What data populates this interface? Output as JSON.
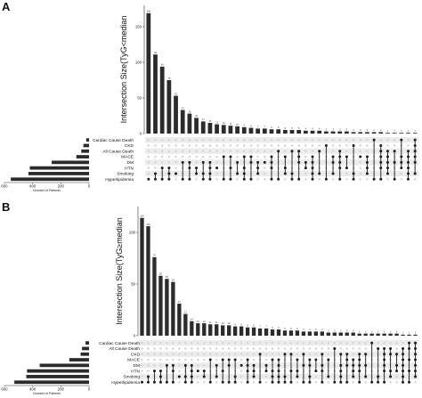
{
  "chart_data": [
    {
      "panel": "A",
      "type": "upset",
      "ylabel": "Intersection Size(TyG<median",
      "y_ticks": [
        0,
        50,
        100,
        150
      ],
      "ylim": [
        0,
        180
      ],
      "intersections_sizes": [
        169,
        111,
        94,
        75,
        53,
        33,
        28,
        22,
        17,
        15,
        13,
        12,
        11,
        10,
        9,
        8,
        7,
        7,
        6,
        6,
        5,
        5,
        5,
        4,
        4,
        4,
        3,
        3,
        3,
        3,
        2,
        2,
        2,
        2,
        2,
        1,
        1,
        1,
        1,
        1
      ],
      "intersections_labels": [
        "169",
        "111",
        "94",
        "75",
        "53",
        "33",
        "28",
        "22",
        "17",
        "15",
        "13",
        "12",
        "11",
        "10",
        "9",
        "8",
        "7",
        "7",
        "6",
        "6",
        "5",
        "5",
        "5",
        "4",
        "4",
        "4",
        "3",
        "3",
        "3",
        "3",
        "2",
        "2",
        "2",
        "2",
        "2",
        "1",
        "1",
        "1",
        "1",
        "1"
      ],
      "sets": [
        "Cardiac Cause Death",
        "CKD",
        "All Cause Death",
        "MACE",
        "DM",
        "HTN",
        "Smoking",
        "Hyperlipidemia"
      ],
      "set_sizes": [
        20,
        40,
        55,
        90,
        265,
        420,
        430,
        555
      ],
      "set_axis_ticks": [
        600,
        400,
        200,
        0
      ],
      "set_axis_labels": [
        "600",
        "400",
        "200",
        "0"
      ],
      "set_axis_label": "Number of Patients",
      "matrix": [
        [
          7
        ],
        [
          7,
          6
        ],
        [
          7,
          5
        ],
        [
          7,
          6,
          5
        ],
        [
          6
        ],
        [
          7,
          4
        ],
        [
          7,
          5,
          4
        ],
        [
          6,
          5
        ],
        [
          7,
          6,
          4
        ],
        [
          7,
          6,
          5,
          4
        ],
        [
          5
        ],
        [
          7,
          3
        ],
        [
          7,
          5,
          3
        ],
        [
          6,
          4
        ],
        [
          7,
          6,
          5,
          3
        ],
        [
          7,
          4,
          3
        ],
        [
          6,
          5,
          4
        ],
        [
          4
        ],
        [
          7,
          5,
          4,
          3
        ],
        [
          7,
          2
        ],
        [
          6,
          5,
          3
        ],
        [
          7,
          6,
          2
        ],
        [
          7,
          4,
          3,
          2
        ],
        [
          5,
          4
        ],
        [
          7,
          6,
          5,
          4,
          3
        ],
        [
          6,
          2
        ],
        [
          7,
          1
        ],
        [
          6,
          4,
          3
        ],
        [
          7,
          5,
          4,
          3,
          2
        ],
        [
          5,
          3
        ],
        [
          7,
          6,
          1
        ],
        [
          3
        ],
        [
          6,
          5,
          4,
          3
        ],
        [
          7,
          0
        ],
        [
          7,
          5,
          4,
          3,
          2,
          1
        ],
        [
          6,
          5,
          4,
          3,
          2
        ],
        [
          7,
          4,
          2
        ],
        [
          5,
          4,
          3,
          0
        ],
        [
          7,
          6,
          5,
          4,
          3,
          2
        ],
        [
          6,
          4,
          3,
          2,
          1,
          0
        ]
      ]
    },
    {
      "panel": "B",
      "type": "upset",
      "ylabel": "Intersection Size(TyG≥median",
      "y_ticks": [
        0,
        50,
        100
      ],
      "ylim": [
        0,
        125
      ],
      "intersections_sizes": [
        114,
        106,
        76,
        58,
        55,
        52,
        31,
        21,
        14,
        12,
        12,
        11,
        11,
        10,
        10,
        9,
        9,
        8,
        8,
        7,
        7,
        6,
        6,
        5,
        5,
        5,
        4,
        4,
        4,
        4,
        3,
        3,
        3,
        3,
        3,
        2,
        2,
        2,
        2,
        2,
        2,
        2,
        1,
        1,
        1
      ],
      "intersections_labels": [
        "114",
        "106",
        "76",
        "58",
        "55",
        "52",
        "31",
        "21",
        "14",
        "12",
        "12",
        "11",
        "11",
        "10",
        "10",
        "9",
        "9",
        "8",
        "8",
        "7",
        "7",
        "6",
        "6",
        "5",
        "5",
        "5",
        "4",
        "4",
        "4",
        "4",
        "3",
        "3",
        "3",
        "3",
        "3",
        "2",
        "2",
        "2",
        "2",
        "2",
        "2",
        "2",
        "1",
        "1",
        "1"
      ],
      "sets": [
        "Cardiac Cause Death",
        "All Cause Death",
        "CKD",
        "MACE",
        "DM",
        "HTN",
        "Smoking",
        "Hyperlipidemia"
      ],
      "set_sizes": [
        25,
        50,
        60,
        140,
        350,
        440,
        445,
        530
      ],
      "set_axis_ticks": [
        600,
        400,
        200,
        0
      ],
      "set_axis_labels": [
        "600",
        "400",
        "200",
        "0"
      ],
      "set_axis_label": "Number of Patients",
      "matrix": [
        [
          7
        ],
        [
          7,
          6
        ],
        [
          7,
          5
        ],
        [
          7,
          6,
          5
        ],
        [
          7,
          4
        ],
        [
          7,
          5,
          4
        ],
        [
          6
        ],
        [
          7,
          6,
          4
        ],
        [
          7,
          6,
          5,
          4
        ],
        [
          5
        ],
        [
          6,
          5
        ],
        [
          7,
          3
        ],
        [
          6,
          4
        ],
        [
          7,
          5,
          3
        ],
        [
          7,
          4,
          3
        ],
        [
          7,
          6,
          3
        ],
        [
          4
        ],
        [
          7,
          5,
          4,
          3
        ],
        [
          6,
          5,
          4
        ],
        [
          7,
          2
        ],
        [
          5,
          4
        ],
        [
          7,
          6,
          5,
          3
        ],
        [
          7,
          6,
          5,
          4,
          3
        ],
        [
          7,
          6,
          2
        ],
        [
          7,
          5,
          2
        ],
        [
          6,
          5,
          3
        ],
        [
          7,
          4,
          2
        ],
        [
          7,
          6,
          4,
          3
        ],
        [
          5,
          3
        ],
        [
          7,
          5,
          4,
          2
        ],
        [
          6,
          3
        ],
        [
          7,
          1
        ],
        [
          7,
          6,
          5,
          4,
          2
        ],
        [
          7,
          4,
          3,
          2
        ],
        [
          6,
          5,
          4,
          3
        ],
        [
          7,
          5,
          4,
          3,
          2
        ],
        [
          6,
          4,
          2
        ],
        [
          7,
          0
        ],
        [
          7,
          6,
          1
        ],
        [
          7,
          5,
          4,
          3,
          2,
          1
        ],
        [
          6,
          5,
          2,
          1
        ],
        [
          5,
          4,
          2
        ],
        [
          7,
          6,
          5,
          4,
          3,
          2,
          1
        ],
        [
          7,
          5,
          3,
          1,
          0
        ],
        [
          6,
          5,
          4,
          3,
          2,
          1,
          0
        ]
      ]
    }
  ]
}
